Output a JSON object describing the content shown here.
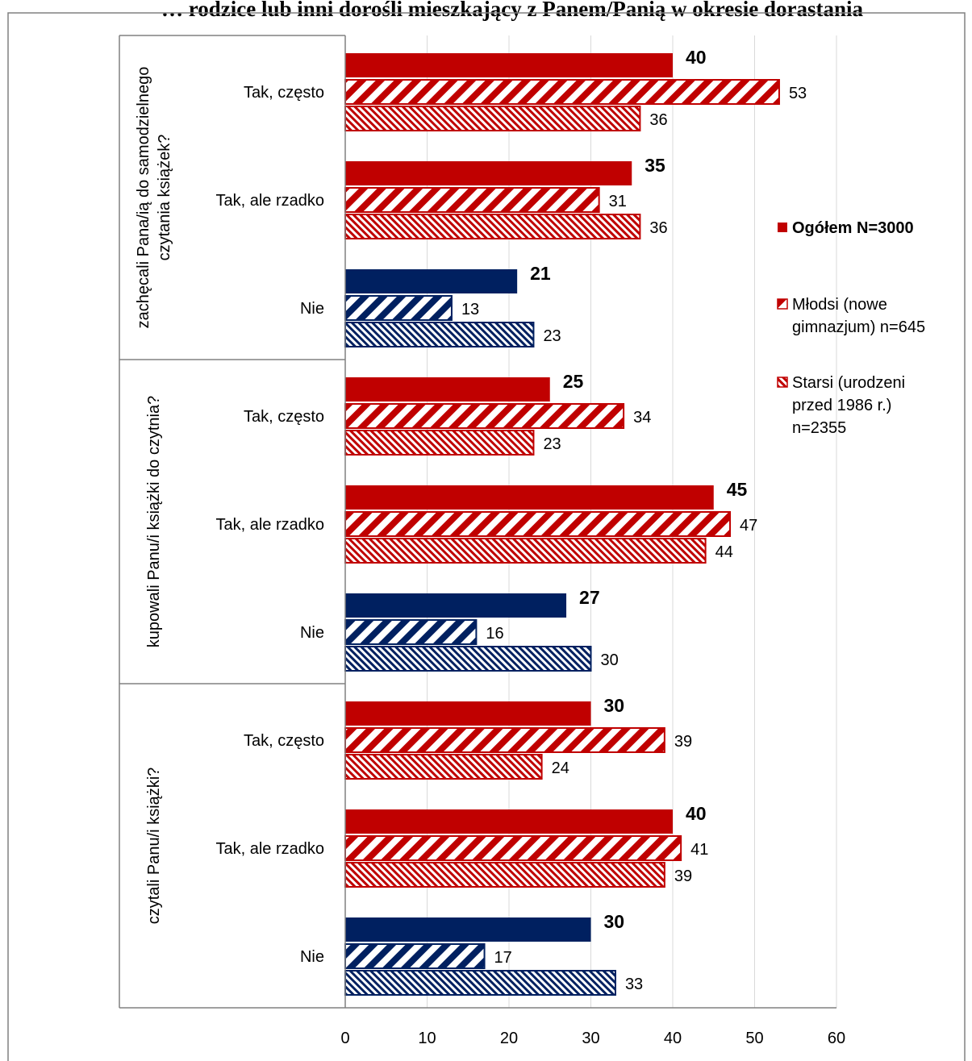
{
  "colors": {
    "red": "#c00000",
    "navy": "#002060",
    "axis": "#808080",
    "frame": "#808080"
  },
  "chart_data": {
    "type": "bar",
    "orientation": "horizontal",
    "title": "… rodzice lub inni dorośli mieszkający z Panem/Panią w okresie dorastania",
    "xlim": [
      0,
      60
    ],
    "xticks": [
      0,
      10,
      20,
      30,
      40,
      50,
      60
    ],
    "grid": true,
    "legend_position": "right",
    "groups": [
      {
        "label": "zachęcali Pana/ią do samodzielnego czytania książek?",
        "categories": [
          "Tak, często",
          "Tak, ale rzadko",
          "Nie"
        ],
        "colors": [
          "red",
          "red",
          "navy"
        ],
        "values": [
          [
            40,
            53,
            36
          ],
          [
            35,
            31,
            36
          ],
          [
            21,
            13,
            23
          ]
        ]
      },
      {
        "label": "kupowali Panu/i książki do czytnia?",
        "categories": [
          "Tak, często",
          "Tak, ale rzadko",
          "Nie"
        ],
        "colors": [
          "red",
          "red",
          "navy"
        ],
        "values": [
          [
            25,
            34,
            23
          ],
          [
            45,
            47,
            44
          ],
          [
            27,
            16,
            30
          ]
        ]
      },
      {
        "label": "czytali Panu/i książki?",
        "categories": [
          "Tak, często",
          "Tak, ale rzadko",
          "Nie"
        ],
        "colors": [
          "red",
          "red",
          "navy"
        ],
        "values": [
          [
            30,
            39,
            24
          ],
          [
            40,
            41,
            39
          ],
          [
            30,
            17,
            33
          ]
        ]
      }
    ],
    "series": [
      {
        "name": "Ogółem N=3000",
        "style": "solid",
        "bold": true
      },
      {
        "name": "Młodsi (nowe gimnazjum) n=645",
        "style": "wide-stripe",
        "bold": false
      },
      {
        "name": "Starsi (urodzeni przed 1986 r.) n=2355",
        "style": "fine-stripe",
        "bold": false
      }
    ],
    "legend_lines": [
      [
        "Ogółem N=3000"
      ],
      [
        "Młodsi (nowe",
        "gimnazjum) n=645"
      ],
      [
        "Starsi (urodzeni",
        "przed 1986 r.)",
        "n=2355"
      ]
    ],
    "group_label_lines": [
      [
        "zachęcali Pana/ią do samodzielnego",
        "czytania książek?"
      ],
      [
        "kupowali Panu/i książki do czytnia?"
      ],
      [
        "czytali Panu/i książki?"
      ]
    ]
  }
}
